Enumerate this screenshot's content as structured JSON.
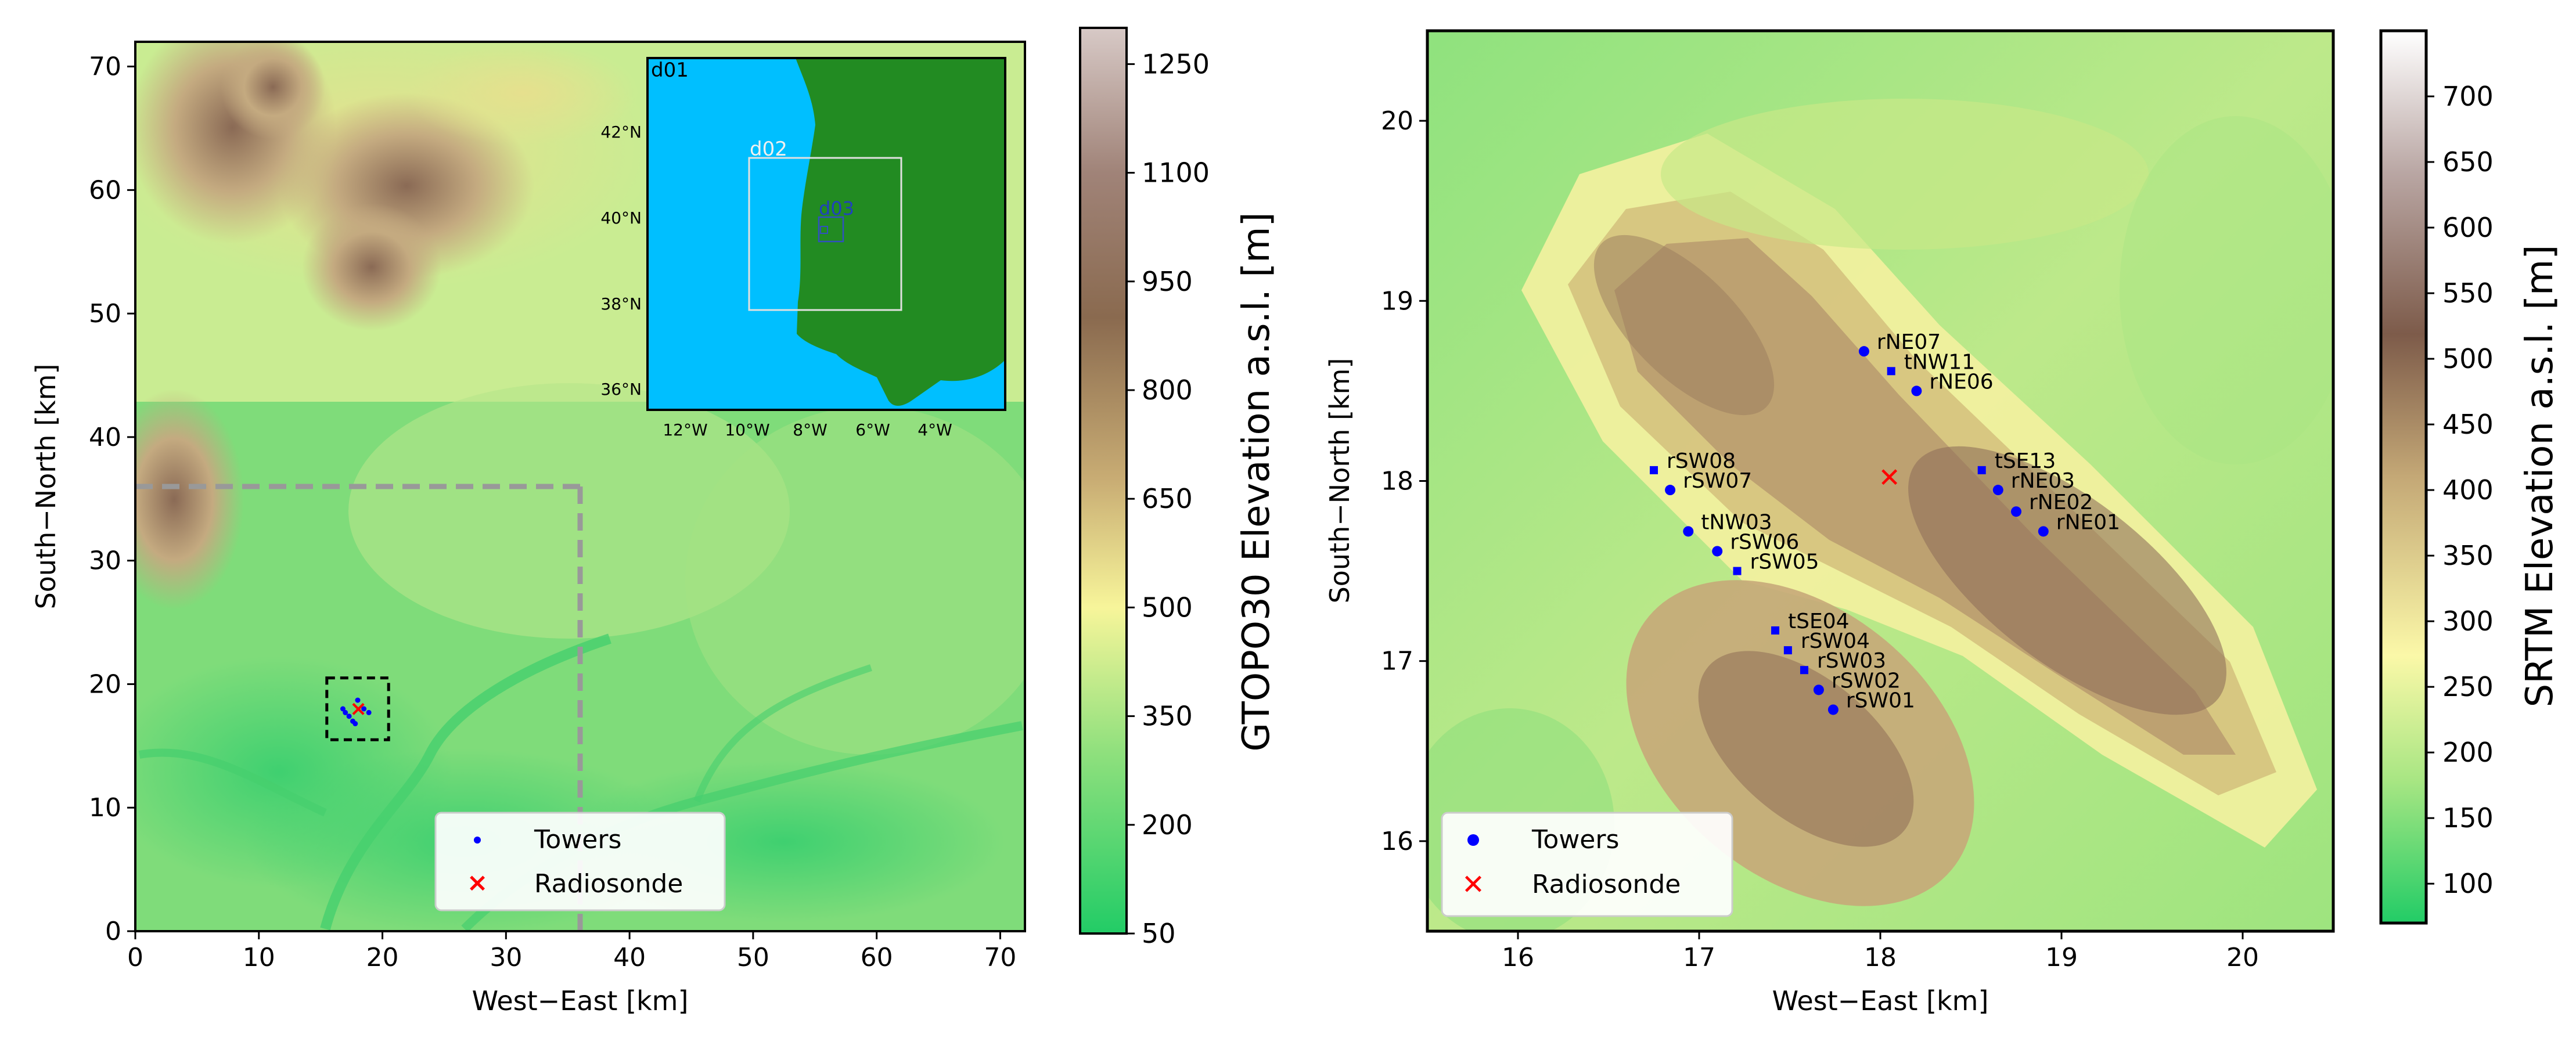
{
  "left_map": {
    "xlabel": "West−East [km]",
    "ylabel": "South−North [km]",
    "xlim": [
      0,
      72
    ],
    "ylim": [
      0,
      72
    ],
    "xticks": [
      0,
      10,
      20,
      30,
      40,
      50,
      60,
      70
    ],
    "yticks": [
      0,
      10,
      20,
      30,
      40,
      50,
      60,
      70
    ],
    "inner_domain_line_km": 36,
    "zoom_box_km": {
      "x0": 15.5,
      "x1": 20.5,
      "y0": 15.5,
      "y1": 20.5
    },
    "towers_km": [
      [
        16.8,
        18.0
      ],
      [
        17.0,
        17.7
      ],
      [
        17.3,
        17.4
      ],
      [
        17.6,
        17.0
      ],
      [
        17.8,
        16.8
      ],
      [
        18.0,
        18.7
      ],
      [
        18.5,
        18.0
      ],
      [
        18.9,
        17.7
      ]
    ],
    "radiosonde_km": [
      18.05,
      18.02
    ],
    "legend": {
      "towers": "Towers",
      "radiosonde": "Radiosonde"
    },
    "colorbar": {
      "label": "GTOPO30 Elevation a.s.l. [m]",
      "ticks": [
        50,
        200,
        350,
        500,
        650,
        800,
        950,
        1100,
        1250
      ],
      "min": 50,
      "max": 1300
    }
  },
  "inset": {
    "labels": {
      "d01": "d01",
      "d02": "d02",
      "d03": "d03"
    },
    "lat_ticks": [
      "42°N",
      "40°N",
      "38°N",
      "36°N"
    ],
    "lon_ticks": [
      "12°W",
      "10°W",
      "8°W",
      "6°W",
      "4°W"
    ],
    "colors": {
      "sea": "#00bfff",
      "land": "#228b22"
    }
  },
  "right_map": {
    "xlabel": "West−East [km]",
    "ylabel": "South−North [km]",
    "xlim": [
      15.5,
      20.5
    ],
    "ylim": [
      15.5,
      20.5
    ],
    "xticks": [
      16,
      17,
      18,
      19,
      20
    ],
    "yticks": [
      16,
      17,
      18,
      19,
      20
    ],
    "stations": [
      {
        "name": "rNE07",
        "x": 17.91,
        "y": 18.72,
        "marker": "circle"
      },
      {
        "name": "tNW11",
        "x": 18.06,
        "y": 18.61,
        "marker": "square"
      },
      {
        "name": "rNE06",
        "x": 18.2,
        "y": 18.5,
        "marker": "circle"
      },
      {
        "name": "rSW08",
        "x": 16.75,
        "y": 18.06,
        "marker": "square"
      },
      {
        "name": "rSW07",
        "x": 16.84,
        "y": 17.95,
        "marker": "circle"
      },
      {
        "name": "tNW03",
        "x": 16.94,
        "y": 17.72,
        "marker": "circle"
      },
      {
        "name": "rSW06",
        "x": 17.1,
        "y": 17.61,
        "marker": "circle"
      },
      {
        "name": "rSW05",
        "x": 17.21,
        "y": 17.5,
        "marker": "square"
      },
      {
        "name": "tSE13",
        "x": 18.56,
        "y": 18.06,
        "marker": "square"
      },
      {
        "name": "rNE03",
        "x": 18.65,
        "y": 17.95,
        "marker": "circle"
      },
      {
        "name": "rNE02",
        "x": 18.75,
        "y": 17.83,
        "marker": "circle"
      },
      {
        "name": "rNE01",
        "x": 18.9,
        "y": 17.72,
        "marker": "circle"
      },
      {
        "name": "tSE04",
        "x": 17.42,
        "y": 17.17,
        "marker": "square"
      },
      {
        "name": "rSW04",
        "x": 17.49,
        "y": 17.06,
        "marker": "square"
      },
      {
        "name": "rSW03",
        "x": 17.58,
        "y": 16.95,
        "marker": "square"
      },
      {
        "name": "rSW02",
        "x": 17.66,
        "y": 16.84,
        "marker": "circle"
      },
      {
        "name": "rSW01",
        "x": 17.74,
        "y": 16.73,
        "marker": "circle"
      }
    ],
    "radiosonde": {
      "x": 18.05,
      "y": 18.02
    },
    "legend": {
      "towers": "Towers",
      "radiosonde": "Radiosonde"
    },
    "colorbar": {
      "label": "SRTM Elevation a.s.l. [m]",
      "ticks": [
        100,
        150,
        200,
        250,
        300,
        350,
        400,
        450,
        500,
        550,
        600,
        650,
        700
      ],
      "min": 70,
      "max": 750
    }
  }
}
